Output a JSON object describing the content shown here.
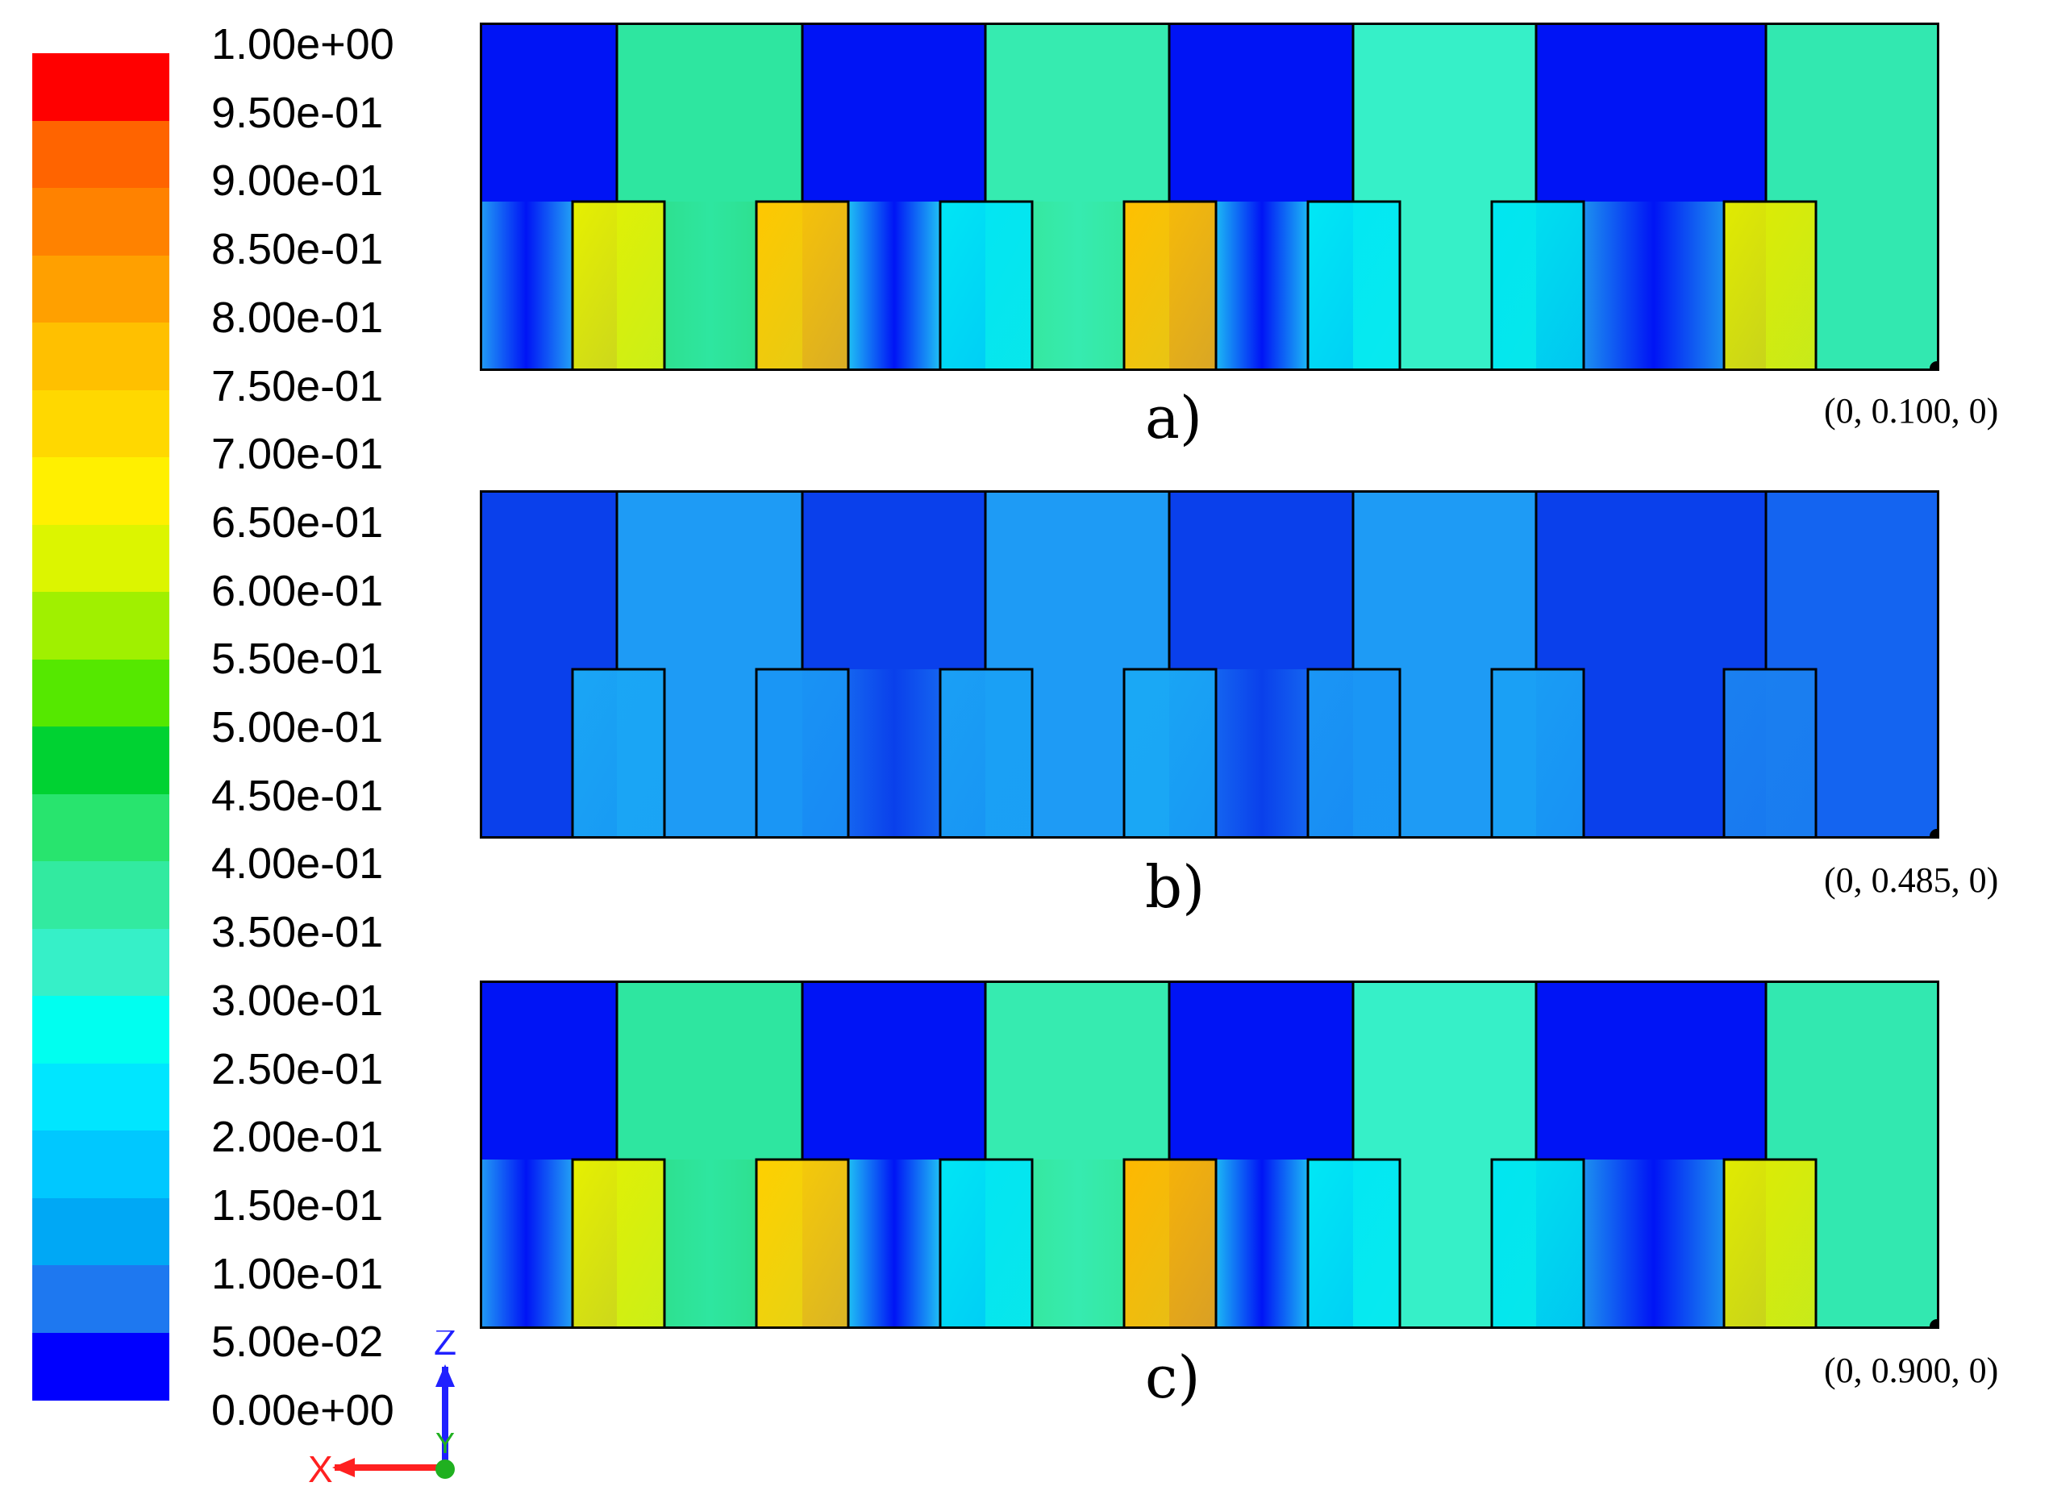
{
  "legend": {
    "labels": [
      "1.00e+00",
      "9.50e-01",
      "9.00e-01",
      "8.50e-01",
      "8.00e-01",
      "7.50e-01",
      "7.00e-01",
      "6.50e-01",
      "6.00e-01",
      "5.50e-01",
      "5.00e-01",
      "4.50e-01",
      "4.00e-01",
      "3.50e-01",
      "3.00e-01",
      "2.50e-01",
      "2.00e-01",
      "1.50e-01",
      "1.00e-01",
      "5.00e-02",
      "0.00e+00"
    ],
    "colors": [
      "#FF0000",
      "#FF6400",
      "#FF8200",
      "#FFA000",
      "#FFC000",
      "#FFD800",
      "#FFF000",
      "#DCF500",
      "#A0F000",
      "#55E800",
      "#00D232",
      "#28E46E",
      "#32EAA0",
      "#36F0C8",
      "#00FFF0",
      "#00E6FF",
      "#00C8FF",
      "#00A8F5",
      "#1E78F0",
      "#0A50EB",
      "#0000FF"
    ]
  },
  "panels": [
    {
      "letter": "a)",
      "coord": "(0, 0.100, 0)"
    },
    {
      "letter": "b)",
      "coord": "(0, 0.485, 0)"
    },
    {
      "letter": "c)",
      "coord": "(0, 0.900, 0)"
    }
  ],
  "axes": {
    "z_label": "Z",
    "y_label": "Y",
    "x_label": "X",
    "z_color": "#2020FF",
    "y_color": "#20B020",
    "x_color": "#FF2020"
  },
  "upper_bands": {
    "a": [
      "#0014F5",
      "#2EE6A0",
      "#0014F5",
      "#36EBB0",
      "#0014F5",
      "#36F0C8",
      "#0014F5",
      "#32E8B0"
    ],
    "b": [
      "#0A40EB",
      "#1E9BF5",
      "#0A40EB",
      "#1E9BF5",
      "#0A40EB",
      "#1E9BF5",
      "#0A40EB",
      "#1464F0"
    ],
    "c": [
      "#0014F5",
      "#2EE6A0",
      "#0014F5",
      "#36EBB0",
      "#0014F5",
      "#36F0C8",
      "#0014F5",
      "#32E8B0"
    ]
  },
  "blocks": {
    "a": [
      "#E6F000",
      "#FFC800",
      "#00E6F5",
      "#FFC000",
      "#00E8F5",
      "#00E6F0",
      "#E1EB00"
    ],
    "b": [
      "#1AA6F5",
      "#1A96F5",
      "#1AA0F5",
      "#1AA8F5",
      "#1A96F5",
      "#1AA0F5",
      "#1A80F0"
    ],
    "c": [
      "#E6F000",
      "#FFD000",
      "#00E6F5",
      "#FFB800",
      "#00E8F5",
      "#00E6F0",
      "#E1EB00"
    ]
  },
  "gap_fills": {
    "a": [
      "#22A0F5",
      "#2EE090",
      "#1FC0F5",
      "#36E8A0",
      "#1CB8F5",
      "#36F0C8",
      "#1C90F0",
      "#32E8B0"
    ],
    "b": [
      "#0A40EB",
      "#1E9BF5",
      "#1464F0",
      "#1E9BF5",
      "#1464F0",
      "#1E9BF5",
      "#0A40EB",
      "#1464F0"
    ],
    "c": [
      "#22A0F5",
      "#2EE090",
      "#1FC0F5",
      "#36E8A0",
      "#1CB8F5",
      "#36F0C8",
      "#1C90F0",
      "#32E8B0"
    ]
  }
}
